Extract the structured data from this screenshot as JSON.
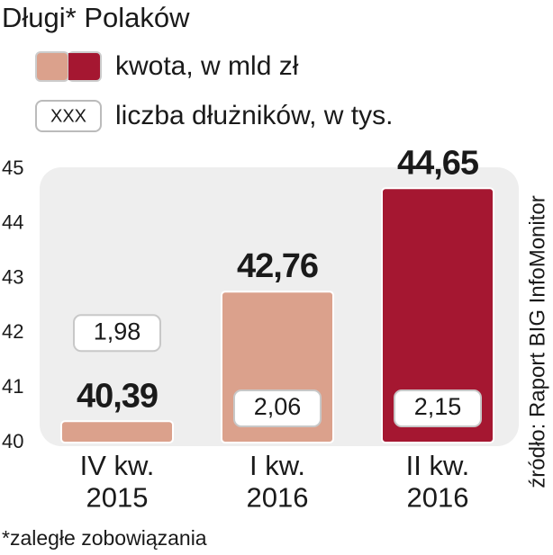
{
  "chart_data": {
    "type": "bar",
    "title": "Długi* Polaków",
    "categories": [
      "IV kw.\n2015",
      "I kw.\n2016",
      "II kw.\n2016"
    ],
    "series": [
      {
        "name": "kwota, w mld zł",
        "colors": [
          "#dba18c",
          "#dba18c",
          "#a51731"
        ],
        "values": [
          40.39,
          42.76,
          44.65
        ],
        "value_labels": [
          "40,39",
          "42,76",
          "44,65"
        ]
      },
      {
        "name": "liczba dłużników, w tys.",
        "marker_label": "XXX",
        "values": [
          1.98,
          2.06,
          2.15
        ],
        "value_labels": [
          "1,98",
          "2,06",
          "2,15"
        ]
      }
    ],
    "ylim": [
      40,
      45
    ],
    "yticks": [
      40,
      41,
      42,
      43,
      44,
      45
    ],
    "grid": false,
    "source": "źródło: Raport BIG InfoMonitor",
    "footnote": "*zaległe zobowiązania"
  }
}
